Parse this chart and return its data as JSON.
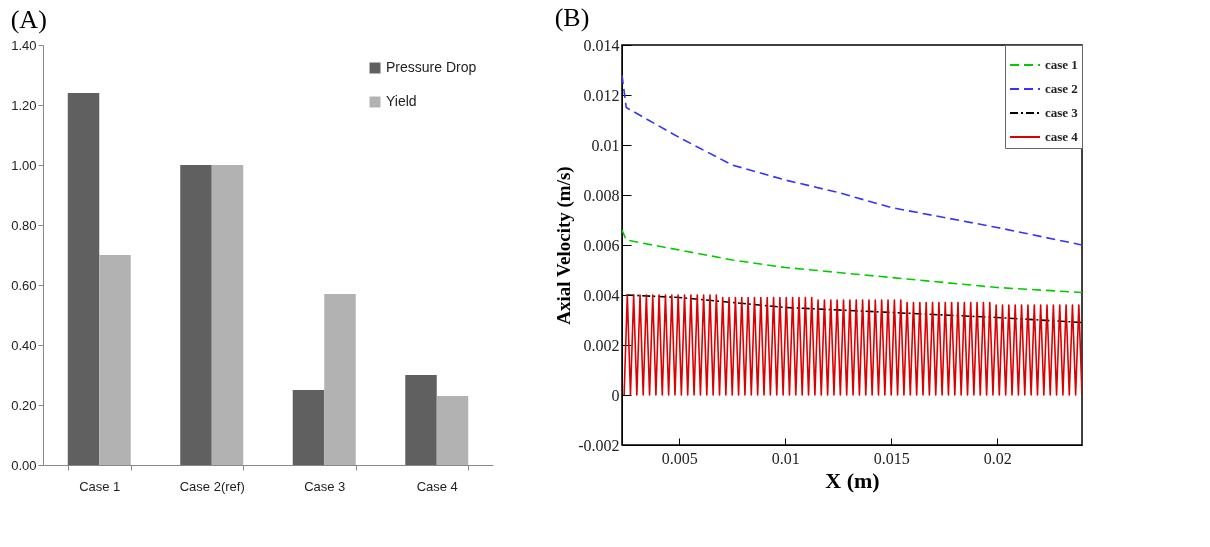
{
  "chart_data": [
    {
      "type": "bar",
      "title": "(A)",
      "categories": [
        "Case 1",
        "Case 2(ref)",
        "Case 3",
        "Case 4"
      ],
      "series": [
        {
          "name": "Pressure Drop",
          "color": "#606060",
          "values": [
            1.24,
            1.0,
            0.25,
            0.3
          ]
        },
        {
          "name": "Yield",
          "color": "#b2b2b2",
          "values": [
            0.7,
            1.0,
            0.57,
            0.23
          ]
        }
      ],
      "ylim": [
        0,
        1.4
      ],
      "yticks": [
        {
          "value": 0,
          "label": "0.00"
        },
        {
          "value": 0.2,
          "label": "0.20"
        },
        {
          "value": 0.4,
          "label": "0.40"
        },
        {
          "value": 0.6,
          "label": "0.60"
        },
        {
          "value": 0.8,
          "label": "0.80"
        },
        {
          "value": 1.0,
          "label": "1.00"
        },
        {
          "value": 1.2,
          "label": "1.20"
        },
        {
          "value": 1.4,
          "label": "1.40"
        }
      ],
      "legend": "top right"
    },
    {
      "type": "line",
      "title": "(B)",
      "xlabel": "X (m)",
      "ylabel": "Axial Velocity (m/s)",
      "series": [
        {
          "name": "case 1",
          "color": "#00cc00",
          "line_style": "dashed",
          "x": [
            0.0023,
            0.0025,
            0.005,
            0.0075,
            0.01,
            0.0125,
            0.015,
            0.0175,
            0.02,
            0.024
          ],
          "values": [
            0.0066,
            0.0062,
            0.0058,
            0.0054,
            0.0051,
            0.0049,
            0.0047,
            0.0045,
            0.0043,
            0.0041
          ]
        },
        {
          "name": "case 2",
          "color": "#3333ff",
          "line_style": "dashed",
          "x": [
            0.0023,
            0.0025,
            0.005,
            0.0075,
            0.01,
            0.0125,
            0.015,
            0.0175,
            0.02,
            0.024
          ],
          "values": [
            0.0128,
            0.0115,
            0.0103,
            0.0092,
            0.0086,
            0.0081,
            0.0075,
            0.0071,
            0.0067,
            0.006
          ]
        },
        {
          "name": "case 3",
          "color": "#000000",
          "line_style": "dashdot",
          "x": [
            0.0025,
            0.005,
            0.0075,
            0.01,
            0.015,
            0.0175,
            0.02,
            0.024
          ],
          "values": [
            0.004,
            0.0039,
            0.0037,
            0.0035,
            0.0033,
            0.0032,
            0.0031,
            0.0029
          ]
        },
        {
          "name": "case 4",
          "color": "#dd0000",
          "line_style": "solid",
          "x": [
            0.0024,
            0.00255,
            0.0027,
            0.00285,
            0.003,
            0.00315,
            0.0033,
            0.00345,
            0.0036,
            0.00375,
            0.0039,
            0.00405,
            0.0042,
            0.00435,
            0.0045,
            0.00465,
            0.0048,
            0.00495,
            0.0051,
            0.00525,
            0.0054,
            0.00555,
            0.0057,
            0.00585,
            0.006,
            0.00615,
            0.0063,
            0.00645,
            0.0066,
            0.00675,
            0.0069,
            0.00705,
            0.0072,
            0.00735,
            0.0075,
            0.00765,
            0.0078,
            0.00795,
            0.0081,
            0.00825,
            0.0084,
            0.00855,
            0.0087,
            0.00885,
            0.009,
            0.00915,
            0.0093,
            0.00945,
            0.0096,
            0.00975,
            0.0099,
            0.01005,
            0.0102,
            0.01035,
            0.0105,
            0.01065,
            0.0108,
            0.01095,
            0.0111,
            0.01125,
            0.0114,
            0.01155,
            0.0117,
            0.01185,
            0.012,
            0.01215,
            0.0123,
            0.01245,
            0.0126,
            0.01275,
            0.0129,
            0.01305,
            0.0132,
            0.01335,
            0.0135,
            0.01365,
            0.0138,
            0.01395,
            0.0141,
            0.01425,
            0.0144,
            0.01455,
            0.0147,
            0.01485,
            0.015,
            0.01515,
            0.0153,
            0.01545,
            0.0156,
            0.01575,
            0.0159,
            0.01605,
            0.0162,
            0.01635,
            0.0165,
            0.01665,
            0.0168,
            0.01695,
            0.0171,
            0.01725,
            0.0174,
            0.01755,
            0.0177,
            0.01785,
            0.018,
            0.01815,
            0.0183,
            0.01845,
            0.0186,
            0.01875,
            0.0189,
            0.01905,
            0.0192,
            0.01935,
            0.0195,
            0.01965,
            0.0198,
            0.01995,
            0.0201,
            0.02025,
            0.0204,
            0.02055,
            0.0207,
            0.02085,
            0.021,
            0.02115,
            0.0213,
            0.02145,
            0.0216,
            0.02175,
            0.0219,
            0.02205,
            0.0222,
            0.02235,
            0.0225,
            0.02265,
            0.0228,
            0.02295,
            0.0231,
            0.02325,
            0.0234,
            0.02355,
            0.0237,
            0.02385,
            0.024
          ],
          "values": [
            0,
            0.004,
            0,
            0.004,
            0,
            0.004,
            0,
            0.004,
            0,
            0.004,
            0,
            0.004,
            0,
            0.004,
            0,
            0.004,
            0,
            0.004,
            0,
            0.004,
            0,
            0.004,
            0,
            0.004,
            0,
            0.004,
            0,
            0.004,
            0,
            0.004,
            0,
            0.0039,
            0,
            0.0039,
            0,
            0.0039,
            0,
            0.0039,
            0,
            0.0039,
            0,
            0.0039,
            0,
            0.0039,
            0,
            0.0039,
            0,
            0.0039,
            0,
            0.0039,
            0,
            0.0039,
            0,
            0.0039,
            0,
            0.0039,
            0,
            0.0039,
            0,
            0.0039,
            0,
            0.0038,
            0,
            0.0038,
            0,
            0.0038,
            0,
            0.0038,
            0,
            0.0038,
            0,
            0.0038,
            0,
            0.0038,
            0,
            0.0038,
            0,
            0.0038,
            0,
            0.0038,
            0,
            0.0038,
            0,
            0.0038,
            0,
            0.0038,
            0,
            0.0038,
            0,
            0.0037,
            0,
            0.0037,
            0,
            0.0037,
            0,
            0.0037,
            0,
            0.0037,
            0,
            0.0037,
            0,
            0.0037,
            0,
            0.0037,
            0,
            0.0037,
            0,
            0.0037,
            0,
            0.0037,
            0,
            0.0037,
            0,
            0.0037,
            0,
            0.0037,
            0,
            0.0036,
            0,
            0.0036,
            0,
            0.0036,
            0,
            0.0036,
            0,
            0.0036,
            0,
            0.0036,
            0,
            0.0036,
            0,
            0.0036,
            0,
            0.0036,
            0,
            0.0036,
            0,
            0.0036,
            0,
            0.0036,
            0,
            0.0036,
            0,
            0.0036,
            0
          ]
        }
      ],
      "xlim": [
        0.0023,
        0.024
      ],
      "xticks": [
        0.005,
        0.01,
        0.015,
        0.02
      ],
      "ylim": [
        -0.002,
        0.014
      ],
      "yticks": [
        -0.002,
        0,
        0.002,
        0.004,
        0.006,
        0.008,
        0.01,
        0.012,
        0.014
      ],
      "legend": "top right",
      "marker": "none"
    }
  ]
}
